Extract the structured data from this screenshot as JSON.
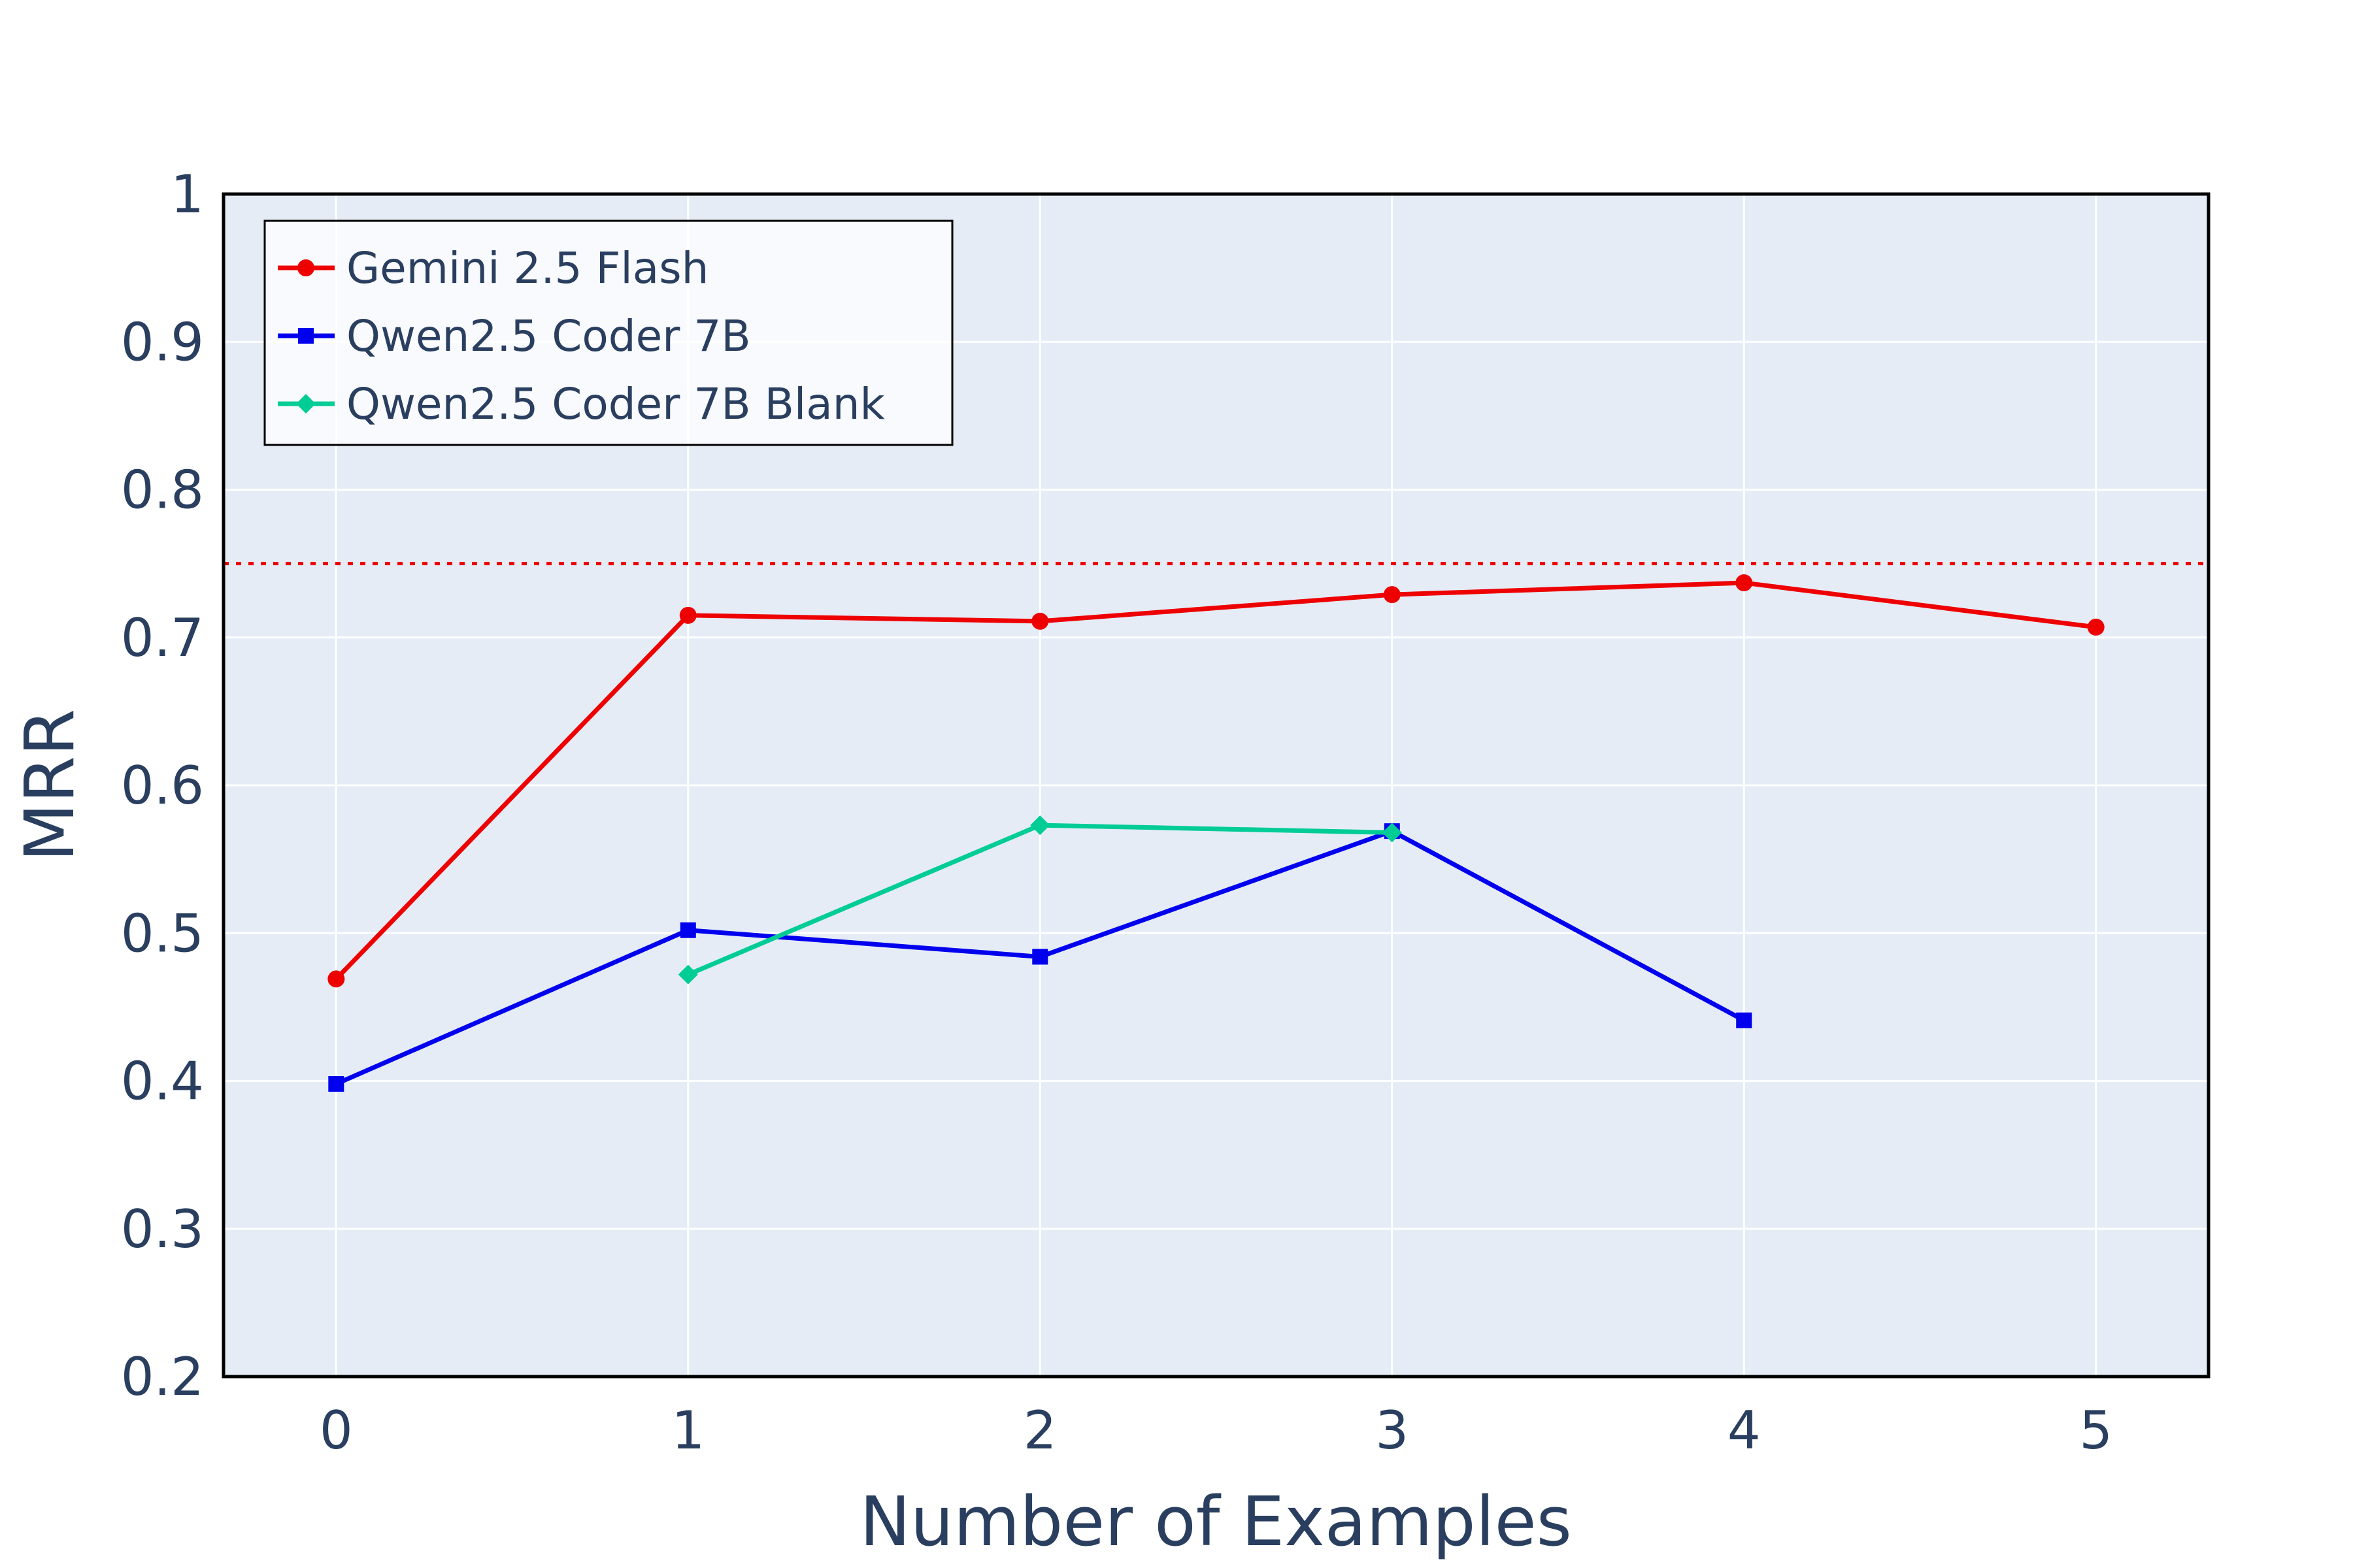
{
  "chart_data": {
    "type": "line",
    "xlabel": "Number of Examples",
    "ylabel": "MRR",
    "xlim": [
      -0.32,
      5.32
    ],
    "ylim": [
      0.2,
      1.0
    ],
    "x_ticks": [
      "0",
      "1",
      "2",
      "3",
      "4",
      "5"
    ],
    "y_ticks": [
      "0.2",
      "0.3",
      "0.4",
      "0.5",
      "0.6",
      "0.7",
      "0.8",
      "0.9",
      "1"
    ],
    "grid": true,
    "legend_position": "top-left",
    "reference_line": {
      "y": 0.75,
      "style": "dotted",
      "color": "#ee0000"
    },
    "series": [
      {
        "name": "Gemini 2.5 Flash",
        "color": "#ee0000",
        "marker": "circle",
        "x": [
          0,
          1,
          2,
          3,
          4,
          5
        ],
        "y": [
          0.469,
          0.715,
          0.711,
          0.729,
          0.737,
          0.707
        ]
      },
      {
        "name": "Qwen2.5 Coder 7B",
        "color": "#0000ee",
        "marker": "square",
        "x": [
          0,
          1,
          2,
          3,
          4
        ],
        "y": [
          0.398,
          0.502,
          0.484,
          0.569,
          0.441
        ]
      },
      {
        "name": "Qwen2.5 Coder 7B Blank",
        "color": "#00cc96",
        "marker": "diamond",
        "x": [
          1,
          2,
          3
        ],
        "y": [
          0.472,
          0.573,
          0.568
        ]
      }
    ]
  }
}
